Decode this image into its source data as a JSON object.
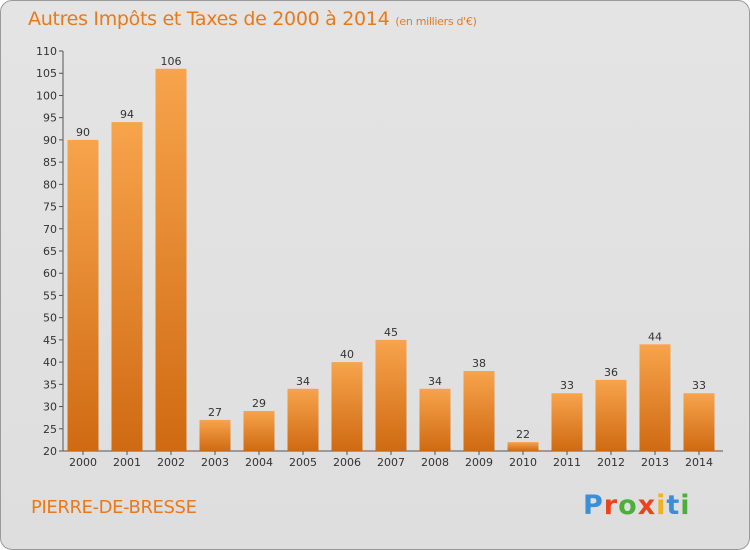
{
  "title": "Autres Impôts et Taxes de 2000 à 2014",
  "subtitle": "(en milliers d'€)",
  "commune": "PIERRE-DE-BRESSE",
  "logo": {
    "letters": [
      "P",
      "r",
      "o",
      "x",
      "i",
      "t",
      "i"
    ],
    "colors": [
      "#3a8fd6",
      "#e8451e",
      "#4caf3a",
      "#e8451e",
      "#f0b21e",
      "#3a8fd6",
      "#4caf3a"
    ]
  },
  "colors": {
    "bar_top": "#f7a44c",
    "bar_bottom": "#cf6a12",
    "text": "#e87a1c"
  },
  "chart_data": {
    "type": "bar",
    "categories": [
      "2000",
      "2001",
      "2002",
      "2003",
      "2004",
      "2005",
      "2006",
      "2007",
      "2008",
      "2009",
      "2010",
      "2011",
      "2012",
      "2013",
      "2014"
    ],
    "values": [
      90,
      94,
      106,
      27,
      29,
      34,
      40,
      45,
      34,
      38,
      22,
      33,
      36,
      44,
      33
    ],
    "ylim": [
      20,
      110
    ],
    "yticks": [
      20,
      25,
      30,
      35,
      40,
      45,
      50,
      55,
      60,
      65,
      70,
      75,
      80,
      85,
      90,
      95,
      100,
      105,
      110
    ],
    "grid": false
  }
}
